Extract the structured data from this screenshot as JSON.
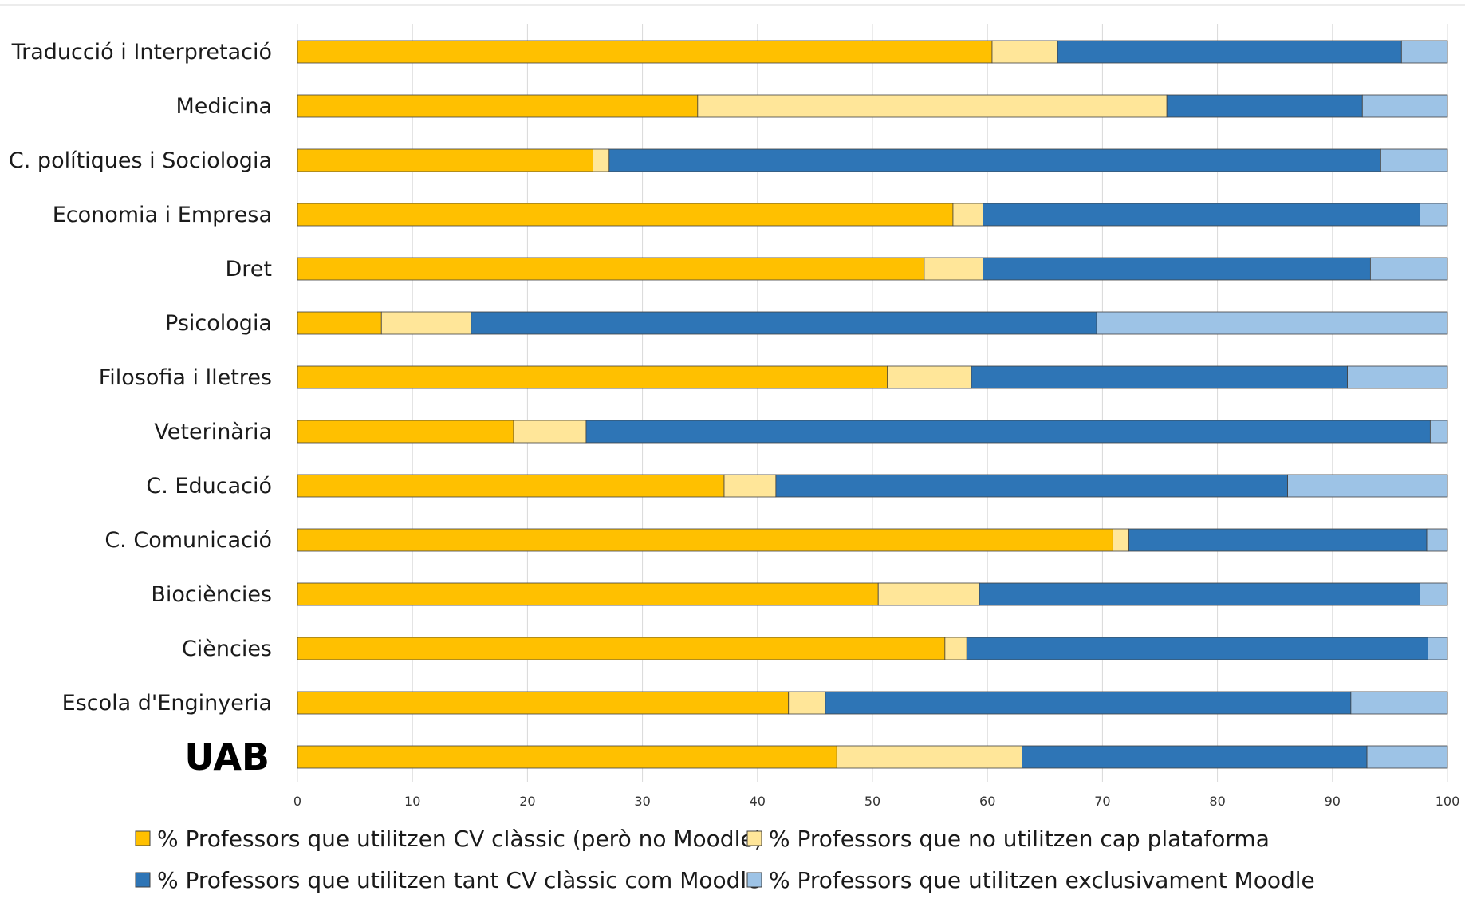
{
  "chart_data": {
    "type": "bar",
    "orientation": "horizontal",
    "stacked": true,
    "title": "",
    "xlabel": "",
    "ylabel": "",
    "xlim": [
      0,
      100
    ],
    "xticks": [
      0,
      10,
      20,
      30,
      40,
      50,
      60,
      70,
      80,
      90,
      100
    ],
    "grid": true,
    "legend_position": "bottom",
    "categories": [
      "Traducció i Interpretació",
      "Medicina",
      "C. polítiques i Sociologia",
      "Economia i Empresa",
      "Dret",
      "Psicologia",
      "Filosofia i lletres",
      "Veterinària",
      "C. Educació",
      "C. Comunicació",
      "Biociències",
      "Ciències",
      "Escola d'Enginyeria",
      "UAB"
    ],
    "highlighted_category": "UAB",
    "series": [
      {
        "name": "% Professors que utilitzen CV clàssic (però no Moodle)",
        "color": "#FFC000",
        "values": [
          60.4,
          34.8,
          25.7,
          57,
          54.5,
          7.3,
          51.3,
          18.8,
          37.1,
          70.9,
          50.5,
          56.3,
          42.7,
          46.9
        ]
      },
      {
        "name": "% Professors que no utilitzen cap plataforma",
        "color": "#FFE699",
        "values": [
          5.7,
          40.8,
          1.4,
          2.6,
          5.1,
          7.8,
          7.3,
          6.3,
          4.5,
          1.4,
          8.8,
          1.9,
          3.2,
          16.1
        ]
      },
      {
        "name": "% Professors que utilitzen tant CV clàssic com Moodle",
        "color": "#2E75B6",
        "values": [
          29.9,
          17.0,
          67.1,
          38.0,
          33.7,
          54.4,
          32.7,
          73.4,
          44.5,
          25.9,
          38.3,
          40.1,
          45.7,
          30.0
        ]
      },
      {
        "name": "% Professors que utilitzen exclusivament Moodle",
        "color": "#9DC3E6",
        "values": [
          4.0,
          7.4,
          5.8,
          2.4,
          6.7,
          30.5,
          8.7,
          1.5,
          13.9,
          1.8,
          2.4,
          1.7,
          8.4,
          7.0
        ]
      }
    ]
  }
}
